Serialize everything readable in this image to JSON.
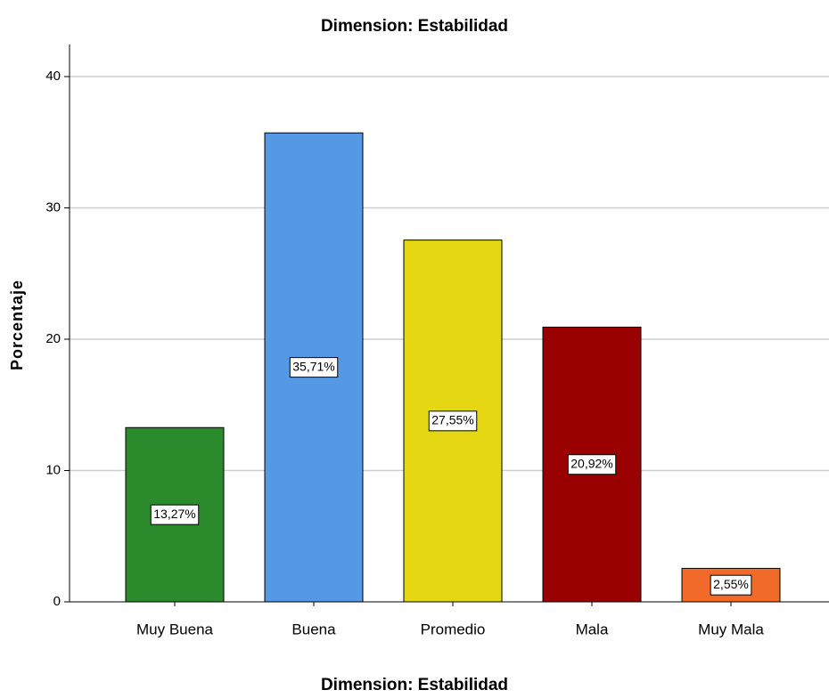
{
  "chart_data": {
    "type": "bar",
    "title": "Dimension: Estabilidad",
    "x_label": "Dimension: Estabilidad",
    "y_label": "Porcentaje",
    "categories": [
      "Muy Buena",
      "Buena",
      "Promedio",
      "Mala",
      "Muy Mala"
    ],
    "values": [
      13.27,
      35.71,
      27.55,
      20.92,
      2.55
    ],
    "value_labels": [
      "13,27%",
      "35,71%",
      "27,55%",
      "20,92%",
      "2,55%"
    ],
    "colors": [
      "#2b8a2b",
      "#5599e5",
      "#e5d812",
      "#990000",
      "#f26a2a"
    ],
    "ylim": [
      0,
      40
    ],
    "yticks": [
      0,
      10,
      20,
      30,
      40
    ],
    "grid": true
  }
}
